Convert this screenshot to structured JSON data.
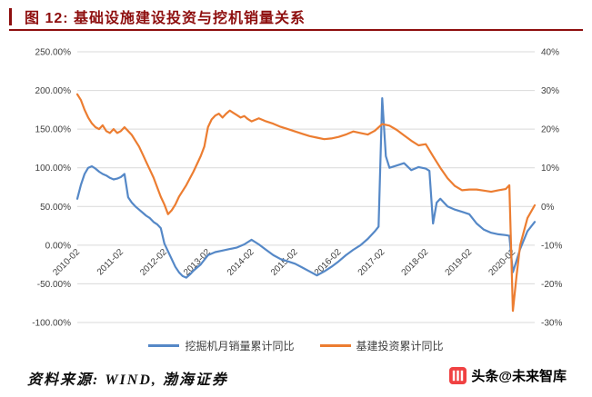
{
  "figure": {
    "title": "图 12:  基础设施建设投资与挖机销量关系",
    "source": "资料来源: WIND,  渤海证券",
    "watermark": "头条@未来智库",
    "accent_color": "#8e0e0e",
    "watermark_color": "#f04142"
  },
  "chart_data": {
    "type": "line",
    "title": "基础设施建设投资与挖机销量关系",
    "grid": true,
    "grid_color": "#d9d9d9",
    "legend_position": "bottom",
    "x_range": [
      0,
      126
    ],
    "x_ticks": [
      "2010-02",
      "2011-02",
      "2012-02",
      "2013-02",
      "2014-02",
      "2015-02",
      "2016-02",
      "2017-02",
      "2018-02",
      "2019-02",
      "2020-02"
    ],
    "x_tick_positions": [
      0,
      12,
      24,
      36,
      48,
      60,
      72,
      84,
      96,
      108,
      120
    ],
    "left_axis": {
      "ticks": [
        "250.00%",
        "200.00%",
        "150.00%",
        "100.00%",
        "50.00%",
        "0.00%",
        "-50.00%",
        "-100.00%"
      ],
      "range": [
        -100,
        250
      ]
    },
    "right_axis": {
      "ticks": [
        "40%",
        "30%",
        "20%",
        "10%",
        "0%",
        "-10%",
        "-20%",
        "-30%"
      ],
      "range": [
        -30,
        40
      ]
    },
    "series": [
      {
        "name": "挖掘机月销量累计同比",
        "axis": "left",
        "color": "#5588c7",
        "unit": "%",
        "x": [
          0,
          1,
          2,
          3,
          4,
          5,
          6,
          7,
          8,
          9,
          10,
          11,
          12,
          13,
          14,
          15,
          16,
          17,
          18,
          19,
          20,
          21,
          22,
          23,
          24,
          25,
          26,
          27,
          28,
          29,
          30,
          31,
          32,
          33,
          34,
          35,
          36,
          38,
          40,
          42,
          44,
          46,
          48,
          50,
          52,
          54,
          56,
          58,
          60,
          62,
          64,
          66,
          68,
          70,
          72,
          74,
          76,
          78,
          80,
          82,
          83,
          84,
          85,
          86,
          88,
          90,
          92,
          94,
          96,
          97,
          98,
          99,
          100,
          102,
          104,
          106,
          108,
          110,
          112,
          114,
          116,
          118,
          119,
          120,
          121,
          122,
          124,
          126
        ],
        "values": [
          60,
          78,
          92,
          100,
          102,
          99,
          95,
          92,
          90,
          87,
          85,
          86,
          88,
          92,
          62,
          55,
          50,
          46,
          42,
          38,
          35,
          30,
          27,
          22,
          2,
          -8,
          -18,
          -28,
          -35,
          -40,
          -42,
          -38,
          -33,
          -29,
          -25,
          -19,
          -13,
          -9,
          -7,
          -5,
          -3,
          1,
          7,
          1,
          -6,
          -13,
          -18,
          -21,
          -24,
          -29,
          -34,
          -39,
          -34,
          -28,
          -21,
          -13,
          -6,
          0,
          8,
          18,
          24,
          190,
          115,
          100,
          103,
          106,
          97,
          101,
          99,
          96,
          28,
          55,
          60,
          50,
          46,
          43,
          40,
          28,
          20,
          16,
          14,
          13,
          12,
          -35,
          -20,
          -5,
          18,
          30
        ]
      },
      {
        "name": "基建投资累计同比",
        "axis": "right",
        "color": "#ec7d31",
        "unit": "%",
        "x": [
          0,
          1,
          2,
          3,
          4,
          5,
          6,
          7,
          8,
          9,
          10,
          11,
          12,
          13,
          14,
          15,
          16,
          17,
          18,
          19,
          20,
          21,
          22,
          23,
          24,
          25,
          26,
          27,
          28,
          30,
          32,
          34,
          35,
          36,
          37,
          38,
          39,
          40,
          41,
          42,
          43,
          44,
          45,
          46,
          47,
          48,
          50,
          52,
          54,
          56,
          58,
          60,
          62,
          64,
          66,
          68,
          70,
          72,
          74,
          76,
          78,
          80,
          82,
          84,
          86,
          88,
          90,
          92,
          94,
          96,
          98,
          100,
          102,
          104,
          106,
          108,
          110,
          112,
          114,
          116,
          118,
          119,
          120,
          121,
          122,
          124,
          126
        ],
        "values": [
          29,
          27.5,
          25,
          23,
          21.5,
          20.5,
          20,
          21,
          19.5,
          19,
          20,
          19,
          19.5,
          20.5,
          19.5,
          18.5,
          17,
          15.5,
          13.5,
          11.5,
          9.5,
          7.5,
          5,
          2.5,
          0.5,
          -2,
          -1,
          0.5,
          2.5,
          5.5,
          9,
          13,
          15.5,
          20.5,
          22.5,
          23.5,
          24,
          23,
          24,
          24.8,
          24.2,
          23.6,
          23,
          23.4,
          22.6,
          22,
          22.8,
          22,
          21.4,
          20.6,
          20,
          19.4,
          18.8,
          18.2,
          17.8,
          17.4,
          17.6,
          18,
          18.6,
          19.4,
          19,
          18.6,
          19.6,
          21.3,
          20.9,
          19.8,
          18.4,
          17,
          15.8,
          16.1,
          13,
          10,
          7.3,
          5.3,
          4.2,
          4.4,
          4.4,
          4.1,
          3.8,
          4.2,
          4.5,
          5.5,
          -27,
          -18,
          -10,
          -3,
          0.3
        ]
      }
    ]
  }
}
